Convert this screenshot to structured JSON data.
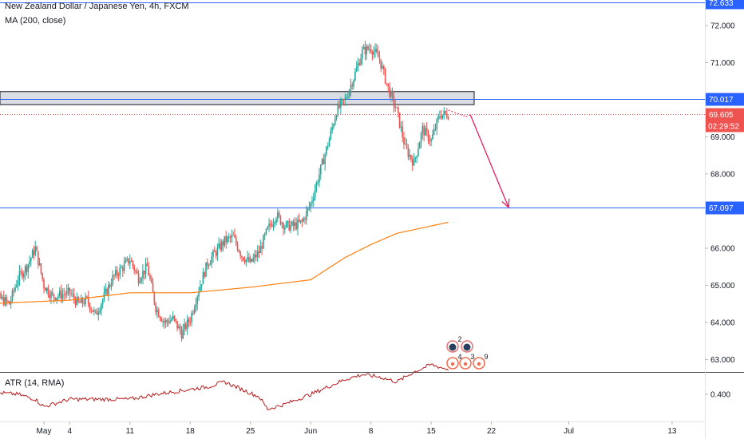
{
  "legend": {
    "title": "New Zealand Dollar / Japanese Yen, 4h, FXCM",
    "ma": "MA (200, close)",
    "atr": "ATR (14, RMA)"
  },
  "colors": {
    "up": "#26a69a",
    "down": "#ef5350",
    "ma": "#ff7f0e",
    "atr": "#b71c1c",
    "hline": "#2962ff",
    "zone_fill": "#d1d4dc",
    "arrow": "#e91e63",
    "price_line": "#ef5350"
  },
  "chart_data": [
    {
      "type": "candlestick",
      "title": "New Zealand Dollar / Japanese Yen, 4h, FXCM",
      "ylim": [
        62.5,
        72.75
      ],
      "y_ticks": [
        "63.000",
        "64.000",
        "65.000",
        "66.000",
        "67.000",
        "68.000",
        "69.000",
        "70.000",
        "71.000",
        "72.000"
      ],
      "x_ticks": [
        "May",
        "4",
        "11",
        "18",
        "25",
        "Jun",
        "8",
        "15",
        "22",
        "Jul",
        "13"
      ],
      "x_tick_dates": [
        "2020-05-01",
        "2020-05-04",
        "2020-05-11",
        "2020-05-18",
        "2020-05-25",
        "2020-06-01",
        "2020-06-08",
        "2020-06-15",
        "2020-06-22",
        "2020-07-01",
        "2020-07-13"
      ],
      "close_anchors": [
        [
          "2020-04-24",
          64.9
        ],
        [
          "2020-04-27",
          64.5
        ],
        [
          "2020-04-28",
          65.2
        ],
        [
          "2020-04-29",
          65.5
        ],
        [
          "2020-04-30",
          66.0
        ],
        [
          "2020-05-01",
          65.0
        ],
        [
          "2020-05-02",
          64.7
        ],
        [
          "2020-05-04",
          64.8
        ],
        [
          "2020-05-05",
          64.5
        ],
        [
          "2020-05-06",
          64.6
        ],
        [
          "2020-05-07",
          64.2
        ],
        [
          "2020-05-08",
          64.7
        ],
        [
          "2020-05-09",
          65.2
        ],
        [
          "2020-05-11",
          65.7
        ],
        [
          "2020-05-12",
          65.2
        ],
        [
          "2020-05-13",
          65.5
        ],
        [
          "2020-05-14",
          64.4
        ],
        [
          "2020-05-15",
          64.0
        ],
        [
          "2020-05-16",
          64.1
        ],
        [
          "2020-05-17",
          63.7
        ],
        [
          "2020-05-18",
          64.1
        ],
        [
          "2020-05-19",
          64.9
        ],
        [
          "2020-05-20",
          65.6
        ],
        [
          "2020-05-21",
          65.9
        ],
        [
          "2020-05-22",
          66.2
        ],
        [
          "2020-05-23",
          66.3
        ],
        [
          "2020-05-24",
          65.8
        ],
        [
          "2020-05-25",
          65.6
        ],
        [
          "2020-05-26",
          65.9
        ],
        [
          "2020-05-27",
          66.5
        ],
        [
          "2020-05-28",
          66.9
        ],
        [
          "2020-05-29",
          66.6
        ],
        [
          "2020-05-30",
          66.6
        ],
        [
          "2020-05-31",
          66.7
        ],
        [
          "2020-06-01",
          67.2
        ],
        [
          "2020-06-02",
          68.0
        ],
        [
          "2020-06-03",
          68.8
        ],
        [
          "2020-06-04",
          69.7
        ],
        [
          "2020-06-05",
          70.0
        ],
        [
          "2020-06-06",
          70.6
        ],
        [
          "2020-06-07",
          71.3
        ],
        [
          "2020-06-08",
          71.4
        ],
        [
          "2020-06-09",
          71.1
        ],
        [
          "2020-06-10",
          70.3
        ],
        [
          "2020-06-11",
          69.7
        ],
        [
          "2020-06-12",
          68.7
        ],
        [
          "2020-06-13",
          68.3
        ],
        [
          "2020-06-14",
          69.2
        ],
        [
          "2020-06-15",
          68.9
        ],
        [
          "2020-06-16",
          69.6
        ],
        [
          "2020-06-17",
          69.61
        ]
      ],
      "ma_anchors": [
        [
          "2020-04-24",
          64.5
        ],
        [
          "2020-05-04",
          64.6
        ],
        [
          "2020-05-11",
          64.8
        ],
        [
          "2020-05-18",
          64.8
        ],
        [
          "2020-05-25",
          64.95
        ],
        [
          "2020-06-01",
          65.15
        ],
        [
          "2020-06-05",
          65.75
        ],
        [
          "2020-06-08",
          66.1
        ],
        [
          "2020-06-11",
          66.4
        ],
        [
          "2020-06-17",
          66.7
        ]
      ],
      "hlines": [
        {
          "label": "72.633",
          "value": 72.633
        },
        {
          "label": "70.017",
          "value": 70.017
        },
        {
          "label": "67.097",
          "value": 67.097
        }
      ],
      "resistance_zone": {
        "from": "2020-04-24",
        "to": "2020-06-20",
        "low": 69.87,
        "high": 70.22
      },
      "current_price": {
        "label": "69.605",
        "value": 69.605,
        "timer": "02:29:52"
      },
      "projection": {
        "points": [
          [
            "2020-06-17",
            69.72
          ],
          [
            "2020-06-19",
            69.55
          ],
          [
            "2020-06-24",
            67.1
          ]
        ]
      },
      "events": {
        "row1": [
          "2"
        ],
        "row2": [
          "4",
          "3",
          "9"
        ]
      }
    },
    {
      "type": "line",
      "title": "ATR (14, RMA)",
      "y_ticks": [
        "0.400"
      ],
      "ylim": [
        0.33,
        0.5
      ],
      "anchors": [
        [
          "2020-04-24",
          0.405
        ],
        [
          "2020-04-28",
          0.4
        ],
        [
          "2020-04-30",
          0.39
        ],
        [
          "2020-05-01",
          0.375
        ],
        [
          "2020-05-04",
          0.39
        ],
        [
          "2020-05-11",
          0.39
        ],
        [
          "2020-05-14",
          0.4
        ],
        [
          "2020-05-18",
          0.41
        ],
        [
          "2020-05-20",
          0.415
        ],
        [
          "2020-05-22",
          0.425
        ],
        [
          "2020-05-24",
          0.41
        ],
        [
          "2020-05-26",
          0.395
        ],
        [
          "2020-05-27",
          0.37
        ],
        [
          "2020-05-29",
          0.38
        ],
        [
          "2020-06-01",
          0.4
        ],
        [
          "2020-06-03",
          0.415
        ],
        [
          "2020-06-05",
          0.43
        ],
        [
          "2020-06-07",
          0.44
        ],
        [
          "2020-06-09",
          0.435
        ],
        [
          "2020-06-11",
          0.425
        ],
        [
          "2020-06-13",
          0.445
        ],
        [
          "2020-06-15",
          0.46
        ],
        [
          "2020-06-17",
          0.45
        ]
      ]
    }
  ]
}
